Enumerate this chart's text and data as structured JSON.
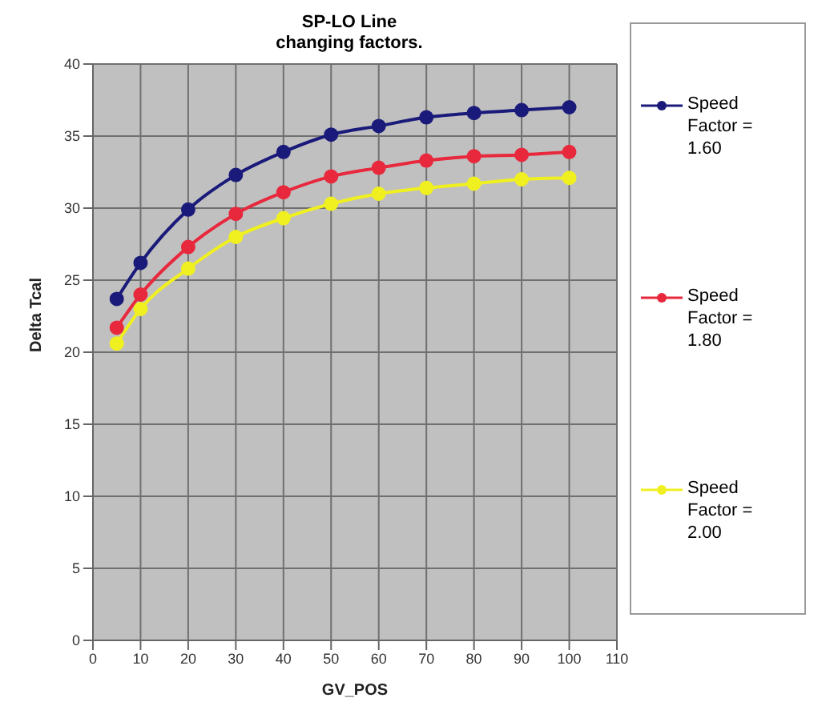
{
  "chart_data": {
    "type": "line",
    "title": "SP-LO  Line\nchanging factors.",
    "xlabel": "GV_POS",
    "ylabel": "Delta Tcal",
    "x": [
      5,
      10,
      20,
      30,
      40,
      50,
      60,
      70,
      80,
      90,
      100
    ],
    "series": [
      {
        "name": "Speed Factor = 1.60",
        "color": "#1a1a7a",
        "values": [
          23.7,
          26.2,
          29.9,
          32.3,
          33.9,
          35.1,
          35.7,
          36.3,
          36.6,
          36.8,
          37.0
        ]
      },
      {
        "name": "Speed Factor = 1.80",
        "color": "#e8283c",
        "values": [
          21.7,
          24.0,
          27.3,
          29.6,
          31.1,
          32.2,
          32.8,
          33.3,
          33.6,
          33.7,
          33.9
        ]
      },
      {
        "name": "Speed Factor = 2.00",
        "color": "#f0f020",
        "values": [
          20.6,
          23.0,
          25.8,
          28.0,
          29.3,
          30.3,
          31.0,
          31.4,
          31.7,
          32.0,
          32.1
        ]
      }
    ],
    "xlim": [
      0,
      110
    ],
    "xticks": [
      0,
      10,
      20,
      30,
      40,
      50,
      60,
      70,
      80,
      90,
      100,
      110
    ],
    "ylim": [
      0,
      40
    ],
    "yticks": [
      0,
      5,
      10,
      15,
      20,
      25,
      30,
      35,
      40
    ],
    "grid": true,
    "legend": "right",
    "marker": "circle",
    "line_style": "solid"
  }
}
